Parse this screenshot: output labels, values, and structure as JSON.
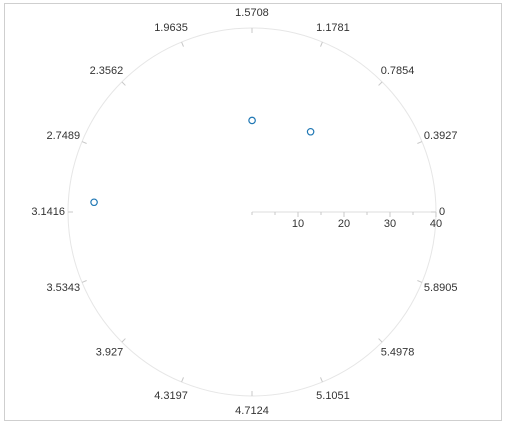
{
  "chart_data": {
    "type": "scatter",
    "coordinate_system": "polar",
    "angle_unit": "radians",
    "radial_axis": {
      "min": 0,
      "max": 40,
      "ticks": [
        10,
        20,
        30,
        40
      ],
      "tick_labels": [
        "10",
        "20",
        "30",
        "40"
      ]
    },
    "angular_axis": {
      "ticks": [
        0,
        0.3927,
        0.7854,
        1.1781,
        1.5708,
        1.9635,
        2.3562,
        2.7489,
        3.1416,
        3.5343,
        3.927,
        4.3197,
        4.7124,
        5.1051,
        5.4978,
        5.8905
      ],
      "tick_labels": [
        "0",
        "0.3927",
        "0.7854",
        "1.1781",
        "1.5708",
        "1.9635",
        "2.3562",
        "2.7489",
        "3.1416",
        "3.5343",
        "3.927",
        "4.3197",
        "4.7124",
        "5.1051",
        "5.4978",
        "5.8905"
      ]
    },
    "series": [
      {
        "points": [
          {
            "theta": 0.94,
            "r": 21.6
          },
          {
            "theta": 1.57,
            "r": 19.9
          },
          {
            "theta": 3.08,
            "r": 34.4
          }
        ]
      }
    ],
    "colors": {
      "marker": "#1f77b4",
      "axis_line": "#e6e6e6",
      "tick": "#c8c8c8",
      "label": "#333333"
    },
    "grid": false,
    "legend": "none"
  }
}
